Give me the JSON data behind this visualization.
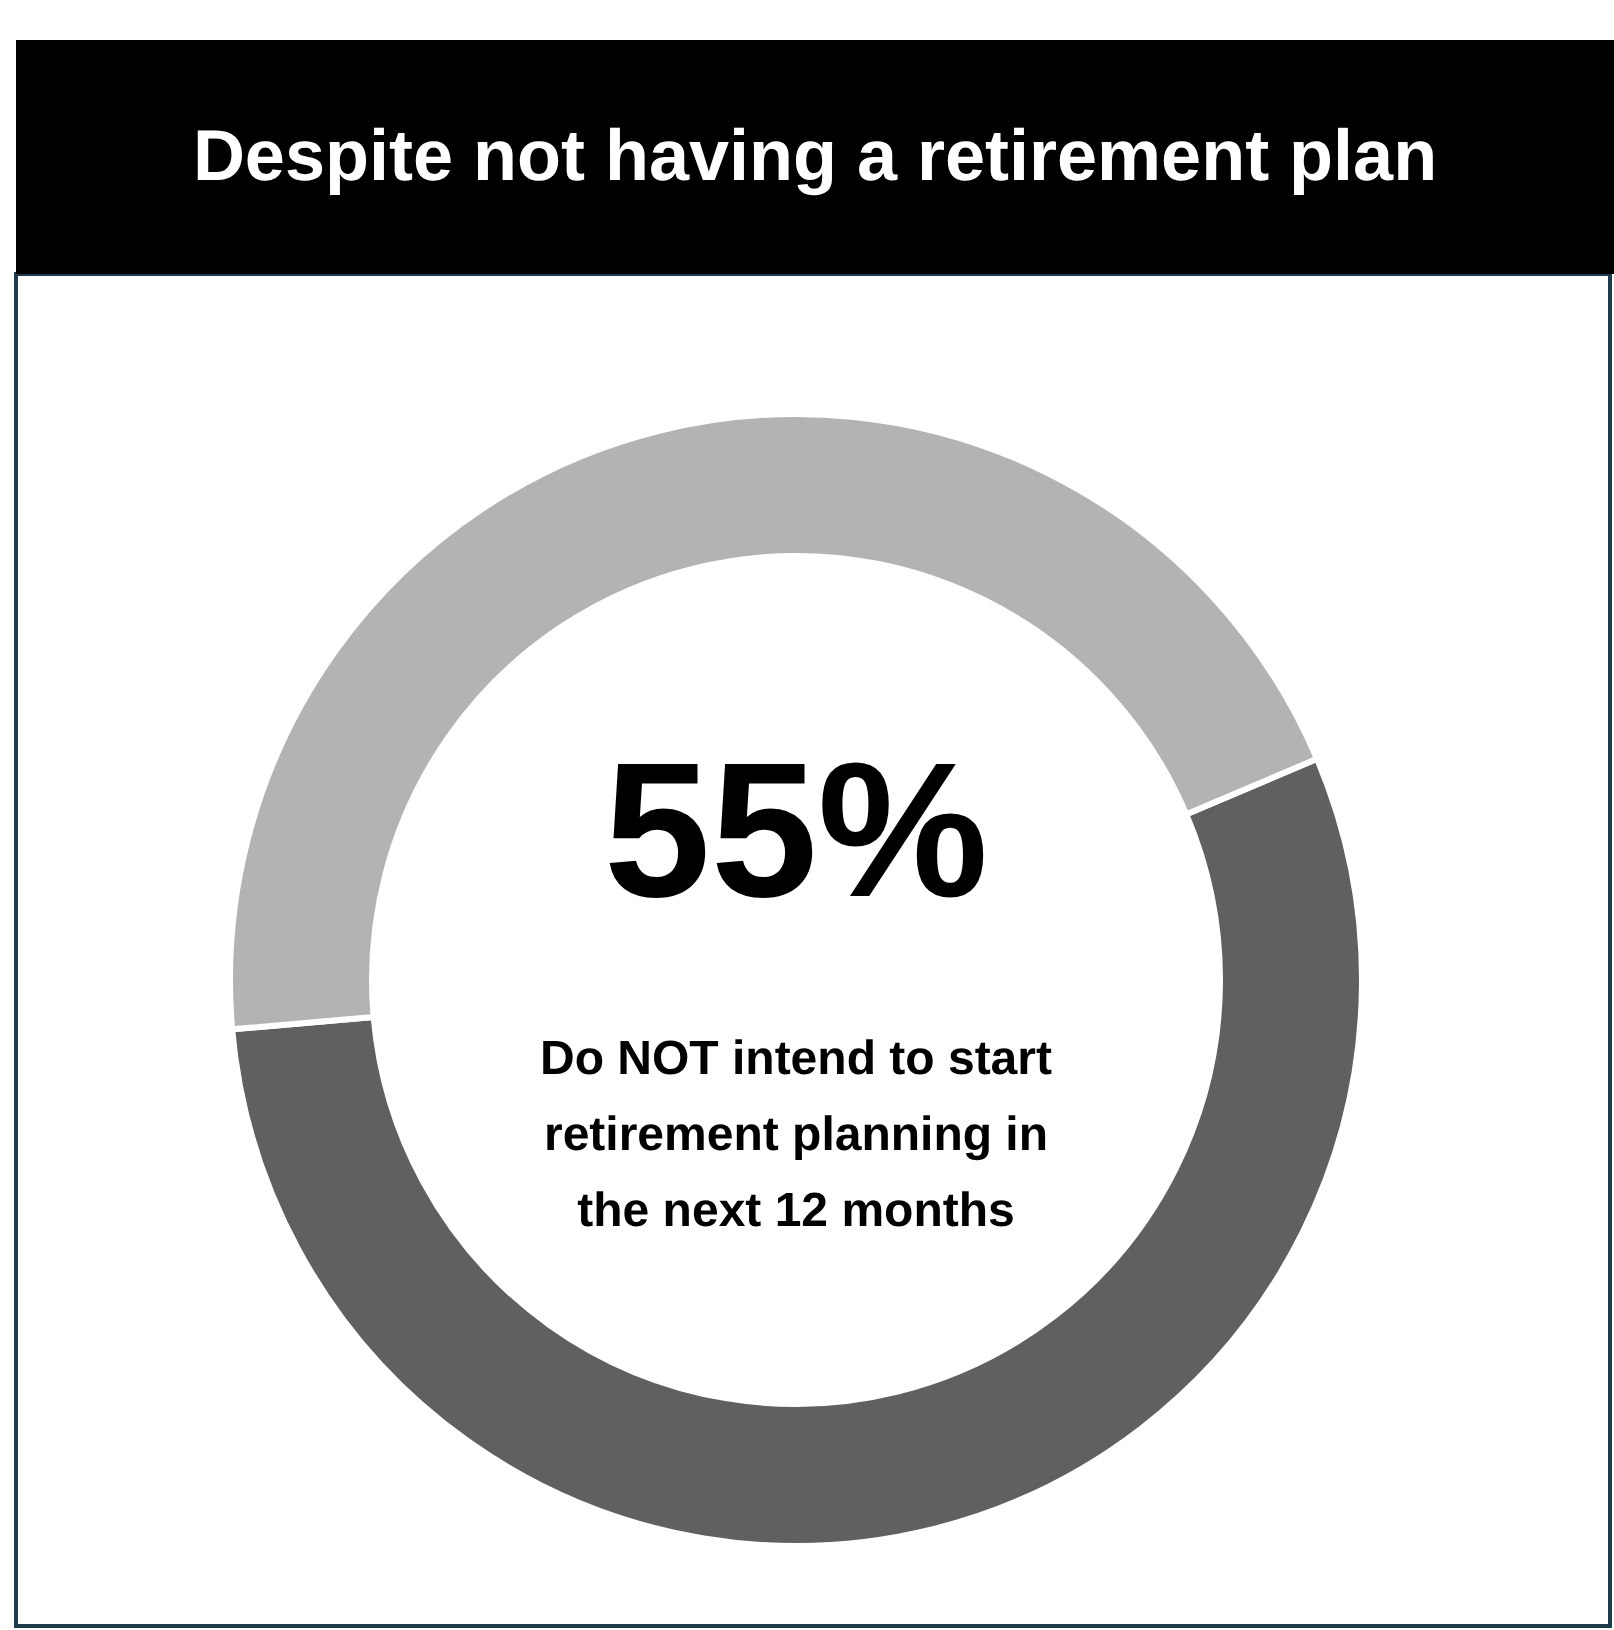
{
  "chart_data": {
    "type": "donut",
    "title": "Despite not having a retirement plan",
    "categories": [
      "Do NOT intend to start retirement planning in the next 12 months",
      null
    ],
    "values": [
      55,
      45
    ],
    "colors": [
      "#606060",
      "#b3b3b3"
    ],
    "value_labels": [
      "55%",
      null
    ]
  }
}
